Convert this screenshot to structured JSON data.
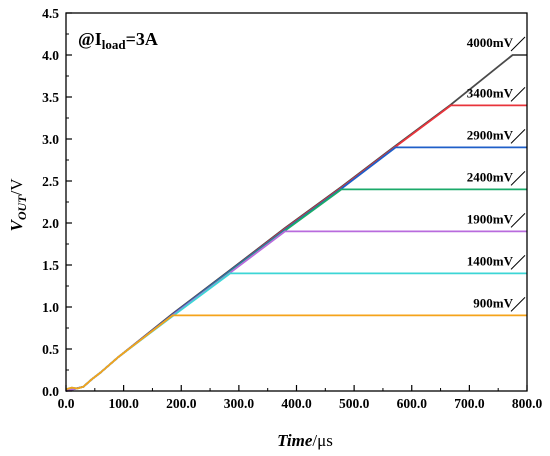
{
  "chart_data": {
    "type": "line",
    "annotation": {
      "prefix": "@I",
      "subscript": "load",
      "suffix": "=3A"
    },
    "xlabel": {
      "main": "Time",
      "unit": "/μs"
    },
    "ylabel": {
      "main": "V",
      "subscript": "OUT",
      "unit": "/V"
    },
    "xlim": [
      0,
      800
    ],
    "ylim": [
      0,
      4.5
    ],
    "xticks": [
      0,
      100,
      200,
      300,
      400,
      500,
      600,
      700,
      800
    ],
    "xtick_labels": [
      "0.0",
      "100.0",
      "200.0",
      "300.0",
      "400.0",
      "500.0",
      "600.0",
      "700.0",
      "800.0"
    ],
    "yticks": [
      0,
      0.5,
      1.0,
      1.5,
      2.0,
      2.5,
      3.0,
      3.5,
      4.0,
      4.5
    ],
    "ytick_labels": [
      "0.0",
      "0.5",
      "1.0",
      "1.5",
      "2.0",
      "2.5",
      "3.0",
      "3.5",
      "4.0",
      "4.5"
    ],
    "grid": false,
    "series": [
      {
        "name": "900mV",
        "color": "#F5A31A",
        "x": [
          0,
          10,
          20,
          30,
          45,
          60,
          90,
          185,
          800
        ],
        "y": [
          0.02,
          0.04,
          0.03,
          0.05,
          0.14,
          0.22,
          0.4,
          0.9,
          0.9
        ]
      },
      {
        "name": "1400mV",
        "color": "#3CD6D6",
        "x": [
          0,
          10,
          20,
          30,
          45,
          60,
          90,
          185,
          285,
          800
        ],
        "y": [
          0.02,
          0.04,
          0.03,
          0.05,
          0.14,
          0.22,
          0.4,
          0.89,
          1.4,
          1.4
        ]
      },
      {
        "name": "1900mV",
        "color": "#B86BDD",
        "x": [
          0,
          30,
          45,
          60,
          90,
          185,
          285,
          380,
          800
        ],
        "y": [
          0.0,
          0.05,
          0.14,
          0.22,
          0.4,
          0.9,
          1.41,
          1.9,
          1.9
        ]
      },
      {
        "name": "2400mV",
        "color": "#1BAA6A",
        "x": [
          0,
          30,
          45,
          60,
          90,
          185,
          285,
          380,
          478,
          800
        ],
        "y": [
          0.0,
          0.05,
          0.14,
          0.22,
          0.4,
          0.9,
          1.42,
          1.91,
          2.4,
          2.4
        ]
      },
      {
        "name": "2900mV",
        "color": "#1F5FC8",
        "x": [
          0,
          30,
          45,
          60,
          90,
          185,
          285,
          380,
          478,
          572,
          800
        ],
        "y": [
          0.0,
          0.05,
          0.14,
          0.22,
          0.4,
          0.91,
          1.43,
          1.92,
          2.41,
          2.9,
          2.9
        ]
      },
      {
        "name": "3400mV",
        "color": "#E8343B",
        "x": [
          0,
          30,
          45,
          60,
          90,
          185,
          285,
          380,
          478,
          572,
          668,
          800
        ],
        "y": [
          0.0,
          0.05,
          0.14,
          0.22,
          0.4,
          0.91,
          1.43,
          1.93,
          2.42,
          2.91,
          3.4,
          3.4
        ]
      },
      {
        "name": "4000mV",
        "color": "#4A4A4A",
        "x": [
          0,
          30,
          45,
          60,
          90,
          185,
          285,
          380,
          478,
          572,
          668,
          775,
          800
        ],
        "y": [
          0.0,
          0.05,
          0.14,
          0.22,
          0.4,
          0.92,
          1.44,
          1.94,
          2.43,
          2.92,
          3.41,
          4.0,
          4.0
        ]
      }
    ]
  }
}
